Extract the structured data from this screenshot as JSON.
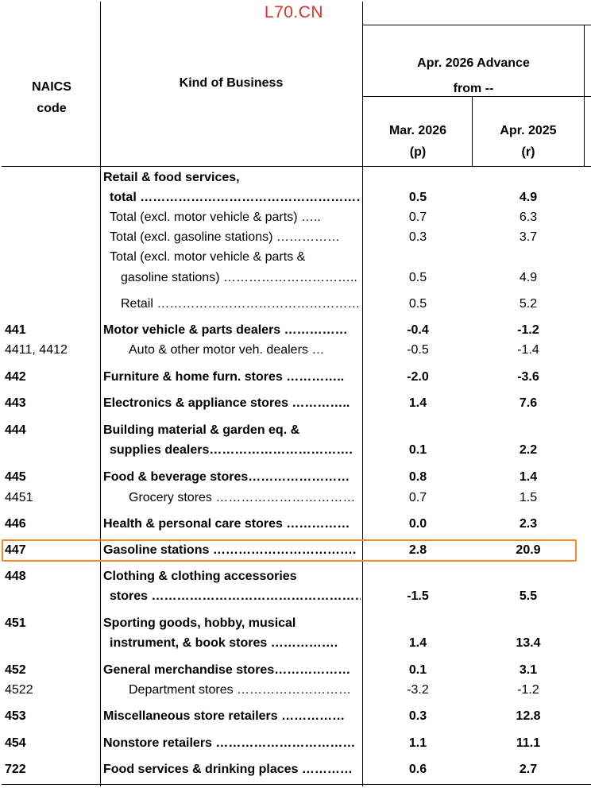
{
  "watermark": "L70.CN",
  "header": {
    "naics_line1": "NAICS",
    "naics_line2": "code",
    "kind_of_business": "Kind of Business",
    "group_line1": "Apr. 2026 Advance",
    "group_line2": "from --",
    "col1_line1": "Mar. 2026",
    "col1_line2": "(p)",
    "col2_line1": "Apr. 2025",
    "col2_line2": "(r)"
  },
  "rows": [
    {
      "code": "",
      "label1": "Retail & food services,",
      "label2": "total ………………………………………………",
      "mar": "0.5",
      "apr": "4.9",
      "bold": true
    },
    {
      "code": "",
      "label1": "Total (excl. motor vehicle & parts) …..",
      "mar": "0.7",
      "apr": "6.3",
      "bold": false
    },
    {
      "code": "",
      "label1": "Total (excl. gasoline stations) ……………",
      "mar": "0.3",
      "apr": "3.7",
      "bold": false
    },
    {
      "code": "",
      "label1": "Total (excl. motor vehicle & parts &",
      "label2": "gasoline stations) …………………………..",
      "mar": "0.5",
      "apr": "4.9",
      "bold": false
    },
    {
      "code": "",
      "label1": "Retail ……………………………………………..",
      "mar": "0.5",
      "apr": "5.2",
      "bold": false
    },
    {
      "code": "441",
      "label1": "Motor vehicle & parts dealers ……………",
      "mar": "-0.4",
      "apr": "-1.2",
      "bold": true
    },
    {
      "code": "4411, 4412",
      "label1": "Auto & other motor veh. dealers …",
      "mar": "-0.5",
      "apr": "-1.4",
      "bold": false
    },
    {
      "code": "442",
      "label1": "Furniture & home furn. stores …………..",
      "mar": "-2.0",
      "apr": "-3.6",
      "bold": true
    },
    {
      "code": "443",
      "label1": "Electronics & appliance stores …………..",
      "mar": "1.4",
      "apr": "7.6",
      "bold": true
    },
    {
      "code": "444",
      "label1": "Building material & garden eq. &",
      "label2": "supplies dealers…………………………….",
      "mar": "0.1",
      "apr": "2.2",
      "bold": true
    },
    {
      "code": "445",
      "label1": "Food & beverage stores……………………",
      "mar": "0.8",
      "apr": "1.4",
      "bold": true
    },
    {
      "code": "4451",
      "label1": "Grocery stores ……………………………",
      "mar": "0.7",
      "apr": "1.5",
      "bold": false
    },
    {
      "code": "446",
      "label1": "Health & personal care stores ……………",
      "mar": "0.0",
      "apr": "2.3",
      "bold": true
    },
    {
      "code": "447",
      "label1": "Gasoline stations …………………………….",
      "mar": "2.8",
      "apr": "20.9",
      "bold": true
    },
    {
      "code": "448",
      "label1": "Clothing & clothing accessories",
      "label2": "stores ……………………………………………",
      "mar": "-1.5",
      "apr": "5.5",
      "bold": true
    },
    {
      "code": "451",
      "label1": "Sporting goods, hobby, musical",
      "label2": "instrument, & book stores …………….",
      "mar": "1.4",
      "apr": "13.4",
      "bold": true
    },
    {
      "code": "452",
      "label1": "General merchandise stores………………",
      "mar": "0.1",
      "apr": "3.1",
      "bold": true
    },
    {
      "code": "4522",
      "label1": "Department stores ………………………",
      "mar": "-3.2",
      "apr": "-1.2",
      "bold": false
    },
    {
      "code": "453",
      "label1": "Miscellaneous store retailers ……………",
      "mar": "0.3",
      "apr": "12.8",
      "bold": true
    },
    {
      "code": "454",
      "label1": "Nonstore retailers ……………………………",
      "mar": "1.1",
      "apr": "11.1",
      "bold": true
    },
    {
      "code": "722",
      "label1": "Food services & drinking places …………",
      "mar": "0.6",
      "apr": "2.7",
      "bold": true
    }
  ]
}
